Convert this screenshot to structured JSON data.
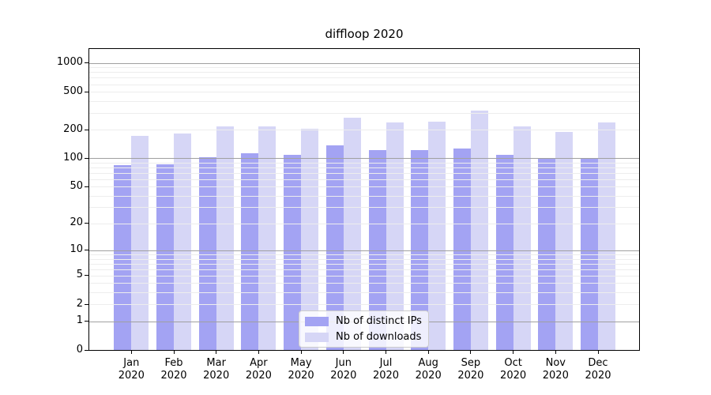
{
  "title": "diffloop 2020",
  "chart_data": {
    "type": "bar",
    "title": "diffloop 2020",
    "year": "2020",
    "categories": [
      "Jan 2020",
      "Feb 2020",
      "Mar 2020",
      "Apr 2020",
      "May 2020",
      "Jun 2020",
      "Jul 2020",
      "Aug 2020",
      "Sep 2020",
      "Oct 2020",
      "Nov 2020",
      "Dec 2020"
    ],
    "months": [
      "Jan",
      "Feb",
      "Mar",
      "Apr",
      "May",
      "Jun",
      "Jul",
      "Aug",
      "Sep",
      "Oct",
      "Nov",
      "Dec"
    ],
    "series": [
      {
        "name": "Nb of distinct IPs",
        "color": "#a3a3f3",
        "values": [
          85,
          86,
          103,
          113,
          108,
          136,
          122,
          123,
          127,
          109,
          99,
          100
        ]
      },
      {
        "name": "Nb of downloads",
        "color": "#d6d6f6",
        "values": [
          173,
          184,
          215,
          215,
          204,
          268,
          236,
          244,
          318,
          217,
          189,
          236
        ]
      }
    ],
    "y_ticks": [
      0,
      1,
      2,
      5,
      10,
      20,
      50,
      100,
      200,
      500,
      1000
    ],
    "y_scale": "log10(value+1)",
    "y_max": 1400,
    "grid": "horizontal log decades, minor lines at 2-9 per decade",
    "legend_position": "lower center",
    "colors": {
      "axis": "#000000",
      "grid_major": "#a0a0a0",
      "grid_minor": "#ededed",
      "legend_border": "#cccccc",
      "legend_bg": "rgba(255,255,255,0.82)",
      "text": "#000000"
    }
  }
}
